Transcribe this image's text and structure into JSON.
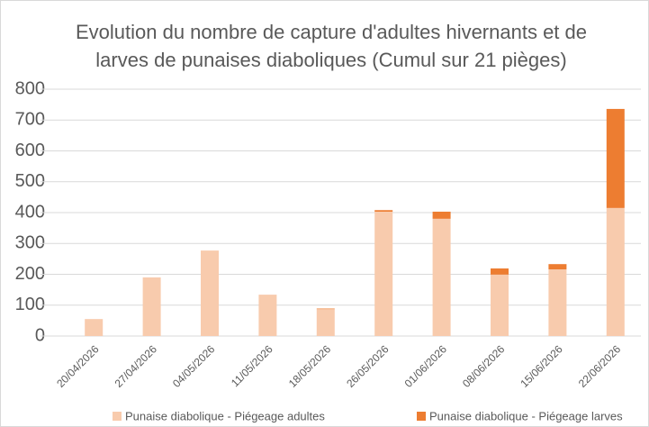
{
  "chart_data": {
    "type": "stacked_bar",
    "title": [
      "Evolution du nombre de capture d'adultes hivernants et de",
      "larves de punaises diaboliques (Cumul sur 21 pièges)"
    ],
    "categories": [
      "20/04/2026",
      "27/04/2026",
      "04/05/2026",
      "11/05/2026",
      "18/05/2026",
      "26/05/2026",
      "01/06/2026",
      "08/06/2026",
      "15/06/2026",
      "22/06/2026"
    ],
    "series": [
      {
        "name": "Punaise diabolique - Piégeage adultes",
        "color": "#f8cbad",
        "values": [
          55,
          190,
          277,
          134,
          87,
          403,
          380,
          199,
          216,
          415
        ]
      },
      {
        "name": "Punaise diabolique - Piégeage larves",
        "color": "#ed7d31",
        "values": [
          0,
          0,
          0,
          0,
          2,
          5,
          23,
          20,
          17,
          321
        ]
      }
    ],
    "ylim": [
      0,
      800
    ],
    "yticks": [
      0,
      100,
      200,
      300,
      400,
      500,
      600,
      700,
      800
    ],
    "grid": true,
    "legend": "bottom"
  }
}
